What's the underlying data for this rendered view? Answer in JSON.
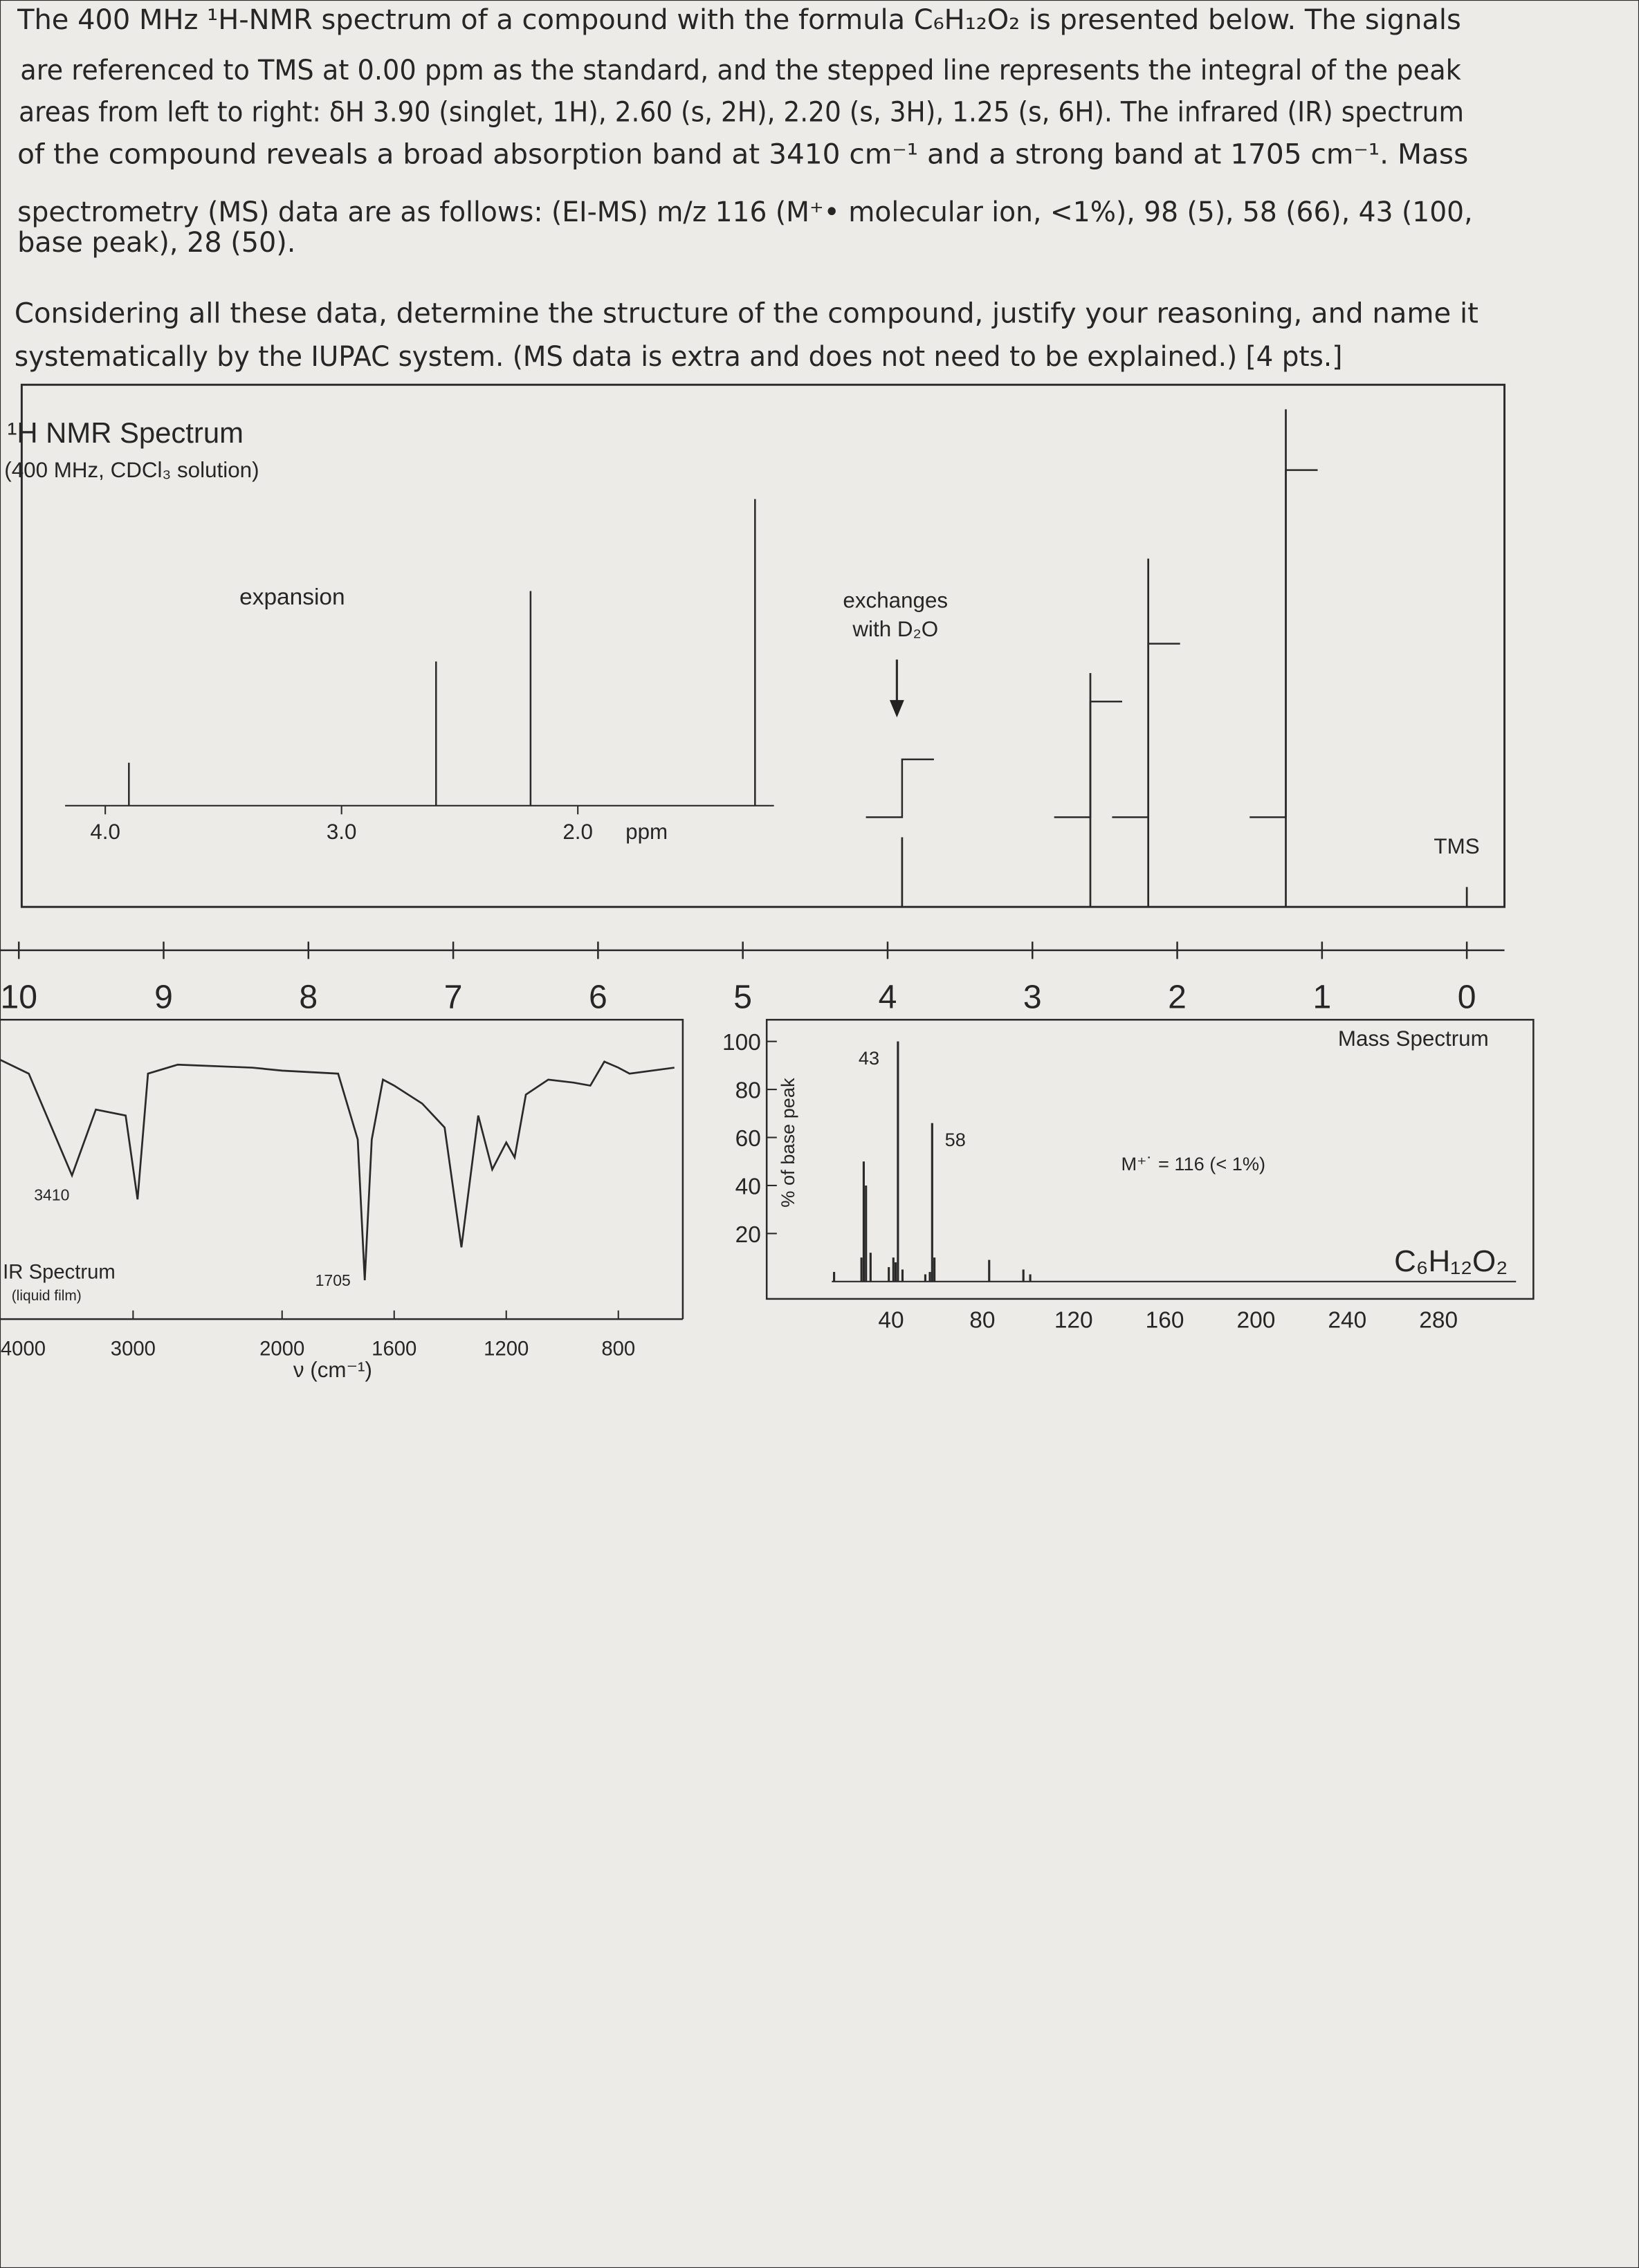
{
  "question": {
    "paragraph1": [
      "The 400 MHz ¹H-NMR spectrum of a compound with the formula C₆H₁₂O₂ is presented below. The signals",
      "are referenced to TMS at 0.00 ppm as the standard, and the stepped line represents the integral of the peak",
      "areas from left to right: δH 3.90 (singlet, 1H), 2.60 (s, 2H), 2.20 (s, 3H), 1.25 (s, 6H). The infrared (IR) spectrum",
      "of the compound reveals a broad absorption band at 3410 cm⁻¹ and a strong band at 1705 cm⁻¹. Mass",
      "spectrometry (MS) data are as follows: (EI-MS) m/z 116 (M⁺• molecular ion, <1%), 98 (5), 58 (66), 43 (100,",
      "base peak), 28 (50)."
    ],
    "paragraph2": [
      "Considering all these data, determine the structure of the compound, justify your reasoning, and name it",
      "systematically by the IUPAC system. (MS data is extra and does not need to be explained.) [4 pts.]"
    ]
  },
  "nmr": {
    "title": "¹H NMR Spectrum",
    "subtitle": "(400 MHz, CDCl₃ solution)",
    "xlim": [
      10.13,
      -0.26
    ],
    "ticks": [
      10,
      9,
      8,
      7,
      6,
      5,
      4,
      3,
      2,
      1,
      0
    ],
    "peaks": [
      {
        "shift": 3.9,
        "height": 14,
        "integral": 1
      },
      {
        "shift": 2.6,
        "height": 47,
        "integral": 2
      },
      {
        "shift": 2.2,
        "height": 70,
        "integral": 3
      },
      {
        "shift": 1.25,
        "height": 100,
        "integral": 6
      },
      {
        "shift": 0,
        "height": 4
      }
    ],
    "tms_label": "TMS",
    "exchange_label": [
      "exchanges",
      "with D₂O"
    ],
    "expansion": {
      "label": "expansion",
      "xlim": [
        4.17,
        1.17
      ],
      "ticks": [
        {
          "value": 4,
          "label": "4.0"
        },
        {
          "value": 3,
          "label": "3.0"
        },
        {
          "value": 2,
          "label": "2.0"
        }
      ],
      "unit": "ppm"
    }
  },
  "ir": {
    "title": "IR Spectrum",
    "subtitle": "(liquid film)",
    "xlabel": "ν (cm⁻¹)",
    "xlim": [
      4000,
      570
    ],
    "xbreak": 2000,
    "ylim": [
      0,
      100
    ],
    "xticks": [
      4000,
      3000,
      2000,
      1600,
      1200,
      800
    ],
    "annotations": [
      3410,
      1705
    ],
    "x": [
      3950,
      3700,
      3410,
      3250,
      3050,
      2970,
      2900,
      2700,
      2200,
      2000,
      1800,
      1730,
      1705,
      1680,
      1640,
      1600,
      1500,
      1420,
      1360,
      1300,
      1250,
      1200,
      1170,
      1130,
      1050,
      960,
      900,
      850,
      800,
      760,
      600
    ],
    "values": [
      88,
      82,
      48,
      70,
      68,
      40,
      82,
      85,
      84,
      83,
      82,
      60,
      13,
      60,
      80,
      78,
      72,
      64,
      24,
      68,
      50,
      59,
      54,
      75,
      80,
      79,
      78,
      86,
      84,
      82,
      84
    ]
  },
  "ms": {
    "title": "Mass Spectrum",
    "ylabel": "% of base peak",
    "xlim": [
      14,
      314
    ],
    "ylim": [
      0,
      100
    ],
    "xticks": [
      40,
      80,
      120,
      160,
      200,
      240,
      280
    ],
    "yticks": [
      20,
      40,
      60,
      80,
      100
    ],
    "x": [
      15,
      27,
      28,
      29,
      31,
      39,
      41,
      42,
      43,
      45,
      55,
      57,
      58,
      59,
      83,
      98,
      101
    ],
    "values": [
      4,
      10,
      50,
      40,
      12,
      6,
      10,
      8,
      100,
      5,
      3,
      4,
      66,
      10,
      9,
      5,
      3
    ],
    "molecular_ion_label": "M⁺˙ = 116 (< 1%)",
    "formula": "C₆H₁₂O₂"
  }
}
